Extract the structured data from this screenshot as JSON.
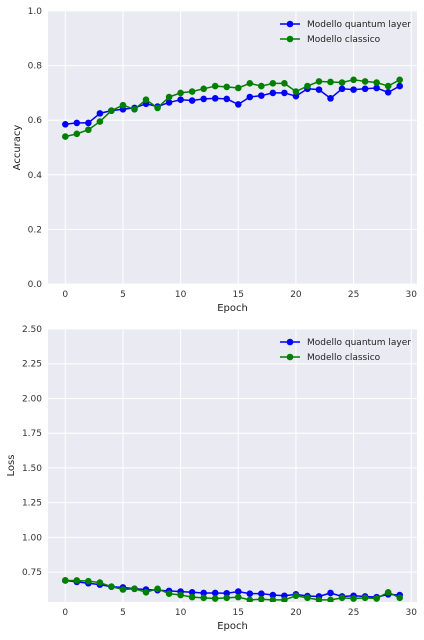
{
  "chart_data": [
    {
      "type": "line",
      "xlabel": "Epoch",
      "ylabel": "Accuracy",
      "xlim": [
        -1.5,
        30.5
      ],
      "ylim": [
        0,
        1
      ],
      "xticks": [
        0,
        5,
        10,
        15,
        20,
        25,
        30
      ],
      "xtick_labels": [
        "0",
        "5",
        "10",
        "15",
        "20",
        "25",
        "30"
      ],
      "yticks": [
        0,
        0.2,
        0.4,
        0.6,
        0.8,
        1.0
      ],
      "ytick_labels": [
        "0.0",
        "0.2",
        "0.4",
        "0.6",
        "0.8",
        "1.0"
      ],
      "grid": true,
      "legend_position": "top-right",
      "x": [
        0,
        1,
        2,
        3,
        4,
        5,
        6,
        7,
        8,
        9,
        10,
        11,
        12,
        13,
        14,
        15,
        16,
        17,
        18,
        19,
        20,
        21,
        22,
        23,
        24,
        25,
        26,
        27,
        28,
        29
      ],
      "series": [
        {
          "name": "Modello quantum layer",
          "color": "#0000ff",
          "values": [
            0.585,
            0.59,
            0.59,
            0.625,
            0.635,
            0.64,
            0.645,
            0.66,
            0.65,
            0.665,
            0.675,
            0.672,
            0.678,
            0.68,
            0.678,
            0.658,
            0.685,
            0.69,
            0.7,
            0.7,
            0.688,
            0.715,
            0.712,
            0.68,
            0.715,
            0.712,
            0.715,
            0.718,
            0.702,
            0.725
          ]
        },
        {
          "name": "Modello classico",
          "color": "#008000",
          "values": [
            0.54,
            0.55,
            0.565,
            0.595,
            0.635,
            0.655,
            0.64,
            0.675,
            0.645,
            0.685,
            0.7,
            0.705,
            0.715,
            0.725,
            0.722,
            0.718,
            0.735,
            0.725,
            0.735,
            0.735,
            0.705,
            0.725,
            0.742,
            0.74,
            0.738,
            0.748,
            0.742,
            0.738,
            0.725,
            0.748
          ]
        }
      ]
    },
    {
      "type": "line",
      "xlabel": "Epoch",
      "ylabel": "Loss",
      "xlim": [
        -1.5,
        30.5
      ],
      "ylim": [
        0.535,
        2.5
      ],
      "xticks": [
        0,
        5,
        10,
        15,
        20,
        25,
        30
      ],
      "xtick_labels": [
        "0",
        "5",
        "10",
        "15",
        "20",
        "25",
        "30"
      ],
      "yticks": [
        0.75,
        1.0,
        1.25,
        1.5,
        1.75,
        2.0,
        2.25,
        2.5
      ],
      "ytick_labels": [
        "0.75",
        "1.00",
        "1.25",
        "1.50",
        "1.75",
        "2.00",
        "2.25",
        "2.50"
      ],
      "grid": true,
      "legend_position": "top-right",
      "x": [
        0,
        1,
        2,
        3,
        4,
        5,
        6,
        7,
        8,
        9,
        10,
        11,
        12,
        13,
        14,
        15,
        16,
        17,
        18,
        19,
        20,
        21,
        22,
        23,
        24,
        25,
        26,
        27,
        28,
        29
      ],
      "series": [
        {
          "name": "Modello quantum layer",
          "color": "#0000ff",
          "values": [
            0.69,
            0.68,
            0.67,
            0.66,
            0.645,
            0.64,
            0.63,
            0.625,
            0.62,
            0.615,
            0.61,
            0.605,
            0.6,
            0.6,
            0.598,
            0.61,
            0.595,
            0.595,
            0.585,
            0.58,
            0.59,
            0.578,
            0.575,
            0.6,
            0.575,
            0.58,
            0.575,
            0.57,
            0.59,
            0.585
          ]
        },
        {
          "name": "Modello classico",
          "color": "#008000",
          "values": [
            0.69,
            0.69,
            0.685,
            0.675,
            0.645,
            0.625,
            0.63,
            0.605,
            0.63,
            0.595,
            0.585,
            0.57,
            0.565,
            0.56,
            0.565,
            0.57,
            0.55,
            0.555,
            0.55,
            0.55,
            0.58,
            0.565,
            0.55,
            0.55,
            0.565,
            0.56,
            0.565,
            0.56,
            0.605,
            0.565
          ]
        }
      ]
    }
  ]
}
